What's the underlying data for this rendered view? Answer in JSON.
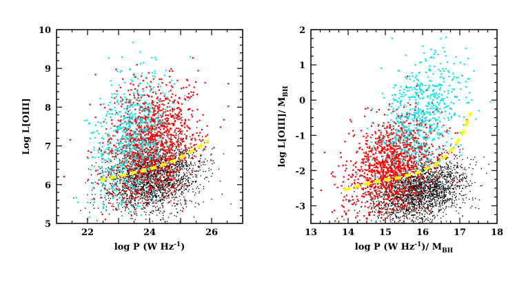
{
  "colors": {
    "black_points": "#000000",
    "red_points": "#ff0000",
    "cyan_points": "#00e5ee",
    "fit_line": "#ffff00"
  },
  "chart_data": [
    {
      "type": "scatter",
      "title": "",
      "xlabel": "log P (W Hz",
      "xlabel_sup": "-1",
      "xlabel_tail": ")",
      "ylabel": "Log  L[OIII]",
      "xlim": [
        21,
        27
      ],
      "ylim": [
        5,
        10
      ],
      "x_ticks": [
        22,
        24,
        26
      ],
      "x_tick_labels": [
        "22",
        "24",
        "26"
      ],
      "y_ticks": [
        5,
        6,
        7,
        8,
        9,
        10
      ],
      "y_tick_labels": [
        "5",
        "6",
        "7",
        "8",
        "9",
        "10"
      ],
      "series": [
        {
          "name": "black",
          "color": "#000000",
          "n": 2200,
          "cx": 24.1,
          "cy": 6.2,
          "sx": 0.75,
          "sy": 0.45,
          "corr": 0.25
        },
        {
          "name": "red",
          "color": "#ff0000",
          "n": 1300,
          "cx": 24.0,
          "cy": 7.1,
          "sx": 0.75,
          "sy": 0.75,
          "corr": 0.2
        },
        {
          "name": "cyan",
          "color": "#00e5ee",
          "n": 650,
          "cx": 23.4,
          "cy": 7.2,
          "sx": 0.65,
          "sy": 0.9,
          "corr": 0.3
        }
      ],
      "fit": {
        "name": "mean relation",
        "x": [
          22.4,
          22.8,
          23.2,
          23.6,
          24.0,
          24.4,
          24.8,
          25.2,
          25.6,
          25.9
        ],
        "y": [
          6.12,
          6.18,
          6.25,
          6.33,
          6.4,
          6.5,
          6.62,
          6.78,
          6.98,
          7.15
        ]
      }
    },
    {
      "type": "scatter",
      "title": "",
      "xlabel": "log P (W Hz",
      "xlabel_sup": "-1",
      "xlabel_tail": ")/ M",
      "xlabel_sub": "BH",
      "ylabel": "log  L[OIII]/ M",
      "ylabel_sub": "BH",
      "xlim": [
        13,
        18
      ],
      "ylim": [
        -3.5,
        2
      ],
      "x_ticks": [
        13,
        14,
        15,
        16,
        17,
        18
      ],
      "x_tick_labels": [
        "13",
        "14",
        "15",
        "16",
        "17",
        "18"
      ],
      "y_ticks": [
        -3,
        -2,
        -1,
        0,
        1,
        2
      ],
      "y_tick_labels": [
        "-3",
        "-2",
        "-1",
        "0",
        "1",
        "2"
      ],
      "series": [
        {
          "name": "black",
          "color": "#000000",
          "n": 2200,
          "cx": 15.9,
          "cy": -2.6,
          "sx": 0.6,
          "sy": 0.45,
          "corr": 0.3
        },
        {
          "name": "red",
          "color": "#ff0000",
          "n": 1300,
          "cx": 15.2,
          "cy": -1.8,
          "sx": 0.6,
          "sy": 0.7,
          "corr": 0.35
        },
        {
          "name": "cyan",
          "color": "#00e5ee",
          "n": 650,
          "cx": 16.0,
          "cy": -0.4,
          "sx": 0.55,
          "sy": 0.9,
          "corr": 0.4
        }
      ],
      "fit": {
        "name": "mean relation",
        "x": [
          13.9,
          14.4,
          14.9,
          15.4,
          15.9,
          16.4,
          16.8,
          17.1,
          17.3
        ],
        "y": [
          -2.55,
          -2.4,
          -2.28,
          -2.2,
          -2.05,
          -1.8,
          -1.4,
          -0.9,
          -0.35
        ]
      }
    }
  ]
}
